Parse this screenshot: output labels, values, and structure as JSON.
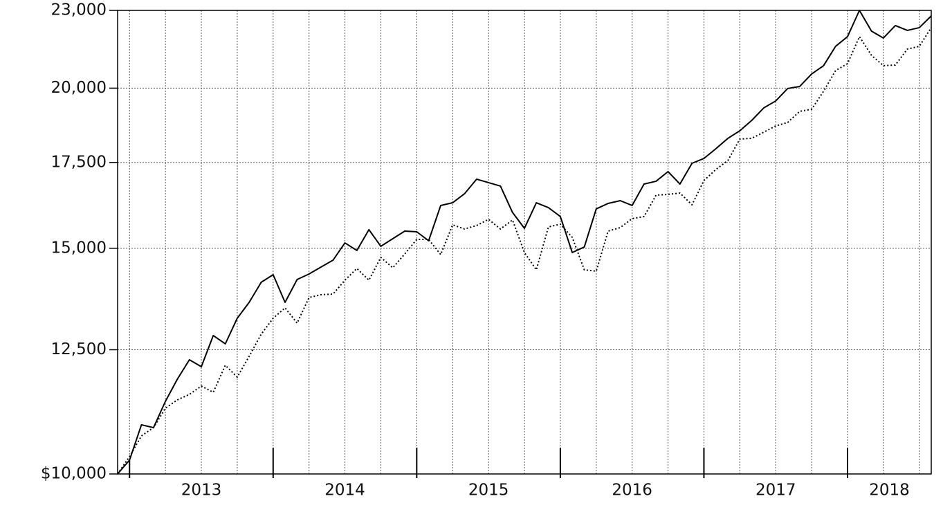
{
  "chart_data": {
    "type": "line",
    "log": true,
    "grid": true,
    "x": [
      2012.917,
      2013.0,
      2013.083,
      2013.167,
      2013.25,
      2013.333,
      2013.417,
      2013.5,
      2013.583,
      2013.667,
      2013.75,
      2013.833,
      2013.917,
      2014.0,
      2014.083,
      2014.167,
      2014.25,
      2014.333,
      2014.417,
      2014.5,
      2014.583,
      2014.667,
      2014.75,
      2014.833,
      2014.917,
      2015.0,
      2015.083,
      2015.167,
      2015.25,
      2015.333,
      2015.417,
      2015.5,
      2015.583,
      2015.667,
      2015.75,
      2015.833,
      2015.917,
      2016.0,
      2016.083,
      2016.167,
      2016.25,
      2016.333,
      2016.417,
      2016.5,
      2016.583,
      2016.667,
      2016.75,
      2016.833,
      2016.917,
      2017.0,
      2017.083,
      2017.167,
      2017.25,
      2017.333,
      2017.417,
      2017.5,
      2017.583,
      2017.667,
      2017.75,
      2017.833,
      2017.917,
      2018.0,
      2018.083,
      2018.167,
      2018.25,
      2018.333,
      2018.417,
      2018.5,
      2018.583
    ],
    "series": [
      {
        "color": "#000000",
        "line_style": "solid",
        "values": [
          10000,
          10252,
          10923,
          10868,
          11394,
          11857,
          12277,
          12125,
          12823,
          12633,
          13228,
          13611,
          14111,
          14305,
          13611,
          14181,
          14323,
          14502,
          14683,
          15146,
          14942,
          15510,
          15053,
          15260,
          15471,
          15451,
          15204,
          16199,
          16279,
          16545,
          16983,
          16878,
          16774,
          15998,
          15548,
          16279,
          16138,
          15880,
          14886,
          15035,
          16099,
          16259,
          16340,
          16199,
          16835,
          16920,
          17216,
          16835,
          17475,
          17628,
          17937,
          18276,
          18526,
          18875,
          19304,
          19545,
          19987,
          20061,
          20516,
          20824,
          21562,
          21940,
          23000,
          22158,
          21885,
          22380,
          22187,
          22298,
          22773
        ]
      },
      {
        "color": "#000000",
        "line_style": "dotted",
        "values": [
          10000,
          10316,
          10708,
          10868,
          11254,
          11423,
          11537,
          11710,
          11580,
          12156,
          11901,
          12353,
          12855,
          13228,
          13477,
          13113,
          13730,
          13799,
          13815,
          14164,
          14466,
          14164,
          14757,
          14484,
          14849,
          15241,
          15241,
          14831,
          15645,
          15529,
          15626,
          15801,
          15529,
          15782,
          14886,
          14430,
          15586,
          15664,
          15299,
          14430,
          14395,
          15471,
          15568,
          15820,
          15880,
          16503,
          16525,
          16564,
          16219,
          16941,
          17281,
          17562,
          18252,
          18276,
          18480,
          18688,
          18804,
          19183,
          19256,
          19887,
          20644,
          20901,
          21940,
          21215,
          20824,
          20849,
          21455,
          21562,
          22298
        ]
      }
    ],
    "xlim": [
      2012.917,
      2018.583
    ],
    "xticks": [
      2013,
      2014,
      2015,
      2016,
      2017,
      2018
    ],
    "xminorticks": [
      2013,
      2013.25,
      2013.5,
      2013.75,
      2014,
      2014.25,
      2014.5,
      2014.75,
      2015,
      2015.25,
      2015.5,
      2015.75,
      2016,
      2016.25,
      2016.5,
      2016.75,
      2017,
      2017.25,
      2017.5,
      2017.75,
      2018,
      2018.25,
      2018.5
    ],
    "ylim": [
      10000,
      23000
    ],
    "yticks": [
      {
        "value": 10000,
        "label": "$10,000"
      },
      {
        "value": 12500,
        "label": "12,500"
      },
      {
        "value": 15000,
        "label": "15,000"
      },
      {
        "value": 17500,
        "label": "17,500"
      },
      {
        "value": 20000,
        "label": "20,000"
      },
      {
        "value": 23000,
        "label": "23,000"
      }
    ]
  }
}
